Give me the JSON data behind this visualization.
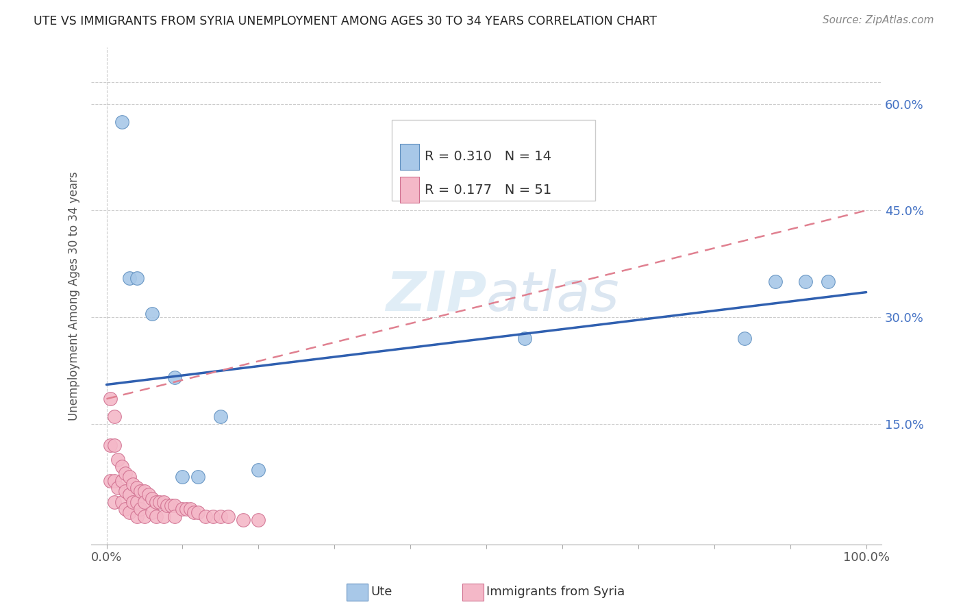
{
  "title": "UTE VS IMMIGRANTS FROM SYRIA UNEMPLOYMENT AMONG AGES 30 TO 34 YEARS CORRELATION CHART",
  "source": "Source: ZipAtlas.com",
  "ylabel": "Unemployment Among Ages 30 to 34 years",
  "xlim": [
    -0.02,
    1.02
  ],
  "ylim": [
    -0.02,
    0.68
  ],
  "yticks": [
    0.15,
    0.3,
    0.45,
    0.6
  ],
  "ytick_labels": [
    "15.0%",
    "30.0%",
    "45.0%",
    "60.0%"
  ],
  "xticks": [
    0.0,
    0.1,
    0.2,
    0.3,
    0.4,
    0.5,
    0.6,
    0.7,
    0.8,
    0.9,
    1.0
  ],
  "xtick_labels": [
    "0.0%",
    "",
    "",
    "",
    "",
    "",
    "",
    "",
    "",
    "",
    "100.0%"
  ],
  "ute_color": "#a8c8e8",
  "syria_color": "#f4b8c8",
  "ute_edge_color": "#6090c0",
  "syria_edge_color": "#d07090",
  "ute_line_color": "#3060b0",
  "syria_line_color": "#e08090",
  "legend_r_ute": "R = 0.310",
  "legend_n_ute": "N = 14",
  "legend_r_syria": "R = 0.177",
  "legend_n_syria": "N = 51",
  "ute_scatter_x": [
    0.02,
    0.03,
    0.04,
    0.06,
    0.09,
    0.1,
    0.12,
    0.15,
    0.2,
    0.55,
    0.84,
    0.88,
    0.92,
    0.95
  ],
  "ute_scatter_y": [
    0.575,
    0.355,
    0.355,
    0.305,
    0.215,
    0.075,
    0.075,
    0.16,
    0.085,
    0.27,
    0.27,
    0.35,
    0.35,
    0.35
  ],
  "syria_scatter_x": [
    0.005,
    0.005,
    0.005,
    0.01,
    0.01,
    0.01,
    0.01,
    0.015,
    0.015,
    0.02,
    0.02,
    0.02,
    0.025,
    0.025,
    0.025,
    0.03,
    0.03,
    0.03,
    0.035,
    0.035,
    0.04,
    0.04,
    0.04,
    0.045,
    0.045,
    0.05,
    0.05,
    0.05,
    0.055,
    0.06,
    0.06,
    0.065,
    0.065,
    0.07,
    0.075,
    0.075,
    0.08,
    0.085,
    0.09,
    0.09,
    0.1,
    0.105,
    0.11,
    0.115,
    0.12,
    0.13,
    0.14,
    0.15,
    0.16,
    0.18,
    0.2
  ],
  "syria_scatter_y": [
    0.185,
    0.12,
    0.07,
    0.16,
    0.12,
    0.07,
    0.04,
    0.1,
    0.06,
    0.09,
    0.07,
    0.04,
    0.08,
    0.055,
    0.03,
    0.075,
    0.05,
    0.025,
    0.065,
    0.04,
    0.06,
    0.04,
    0.02,
    0.055,
    0.03,
    0.055,
    0.04,
    0.02,
    0.05,
    0.045,
    0.025,
    0.04,
    0.02,
    0.04,
    0.04,
    0.02,
    0.035,
    0.035,
    0.035,
    0.02,
    0.03,
    0.03,
    0.03,
    0.025,
    0.025,
    0.02,
    0.02,
    0.02,
    0.02,
    0.015,
    0.015
  ],
  "ute_trend_x": [
    0.0,
    1.0
  ],
  "ute_trend_y": [
    0.205,
    0.335
  ],
  "syria_trend_x": [
    0.0,
    1.0
  ],
  "syria_trend_y": [
    0.185,
    0.45
  ],
  "watermark_zip": "ZIP",
  "watermark_atlas": "atlas",
  "background_color": "#ffffff",
  "grid_color": "#cccccc",
  "title_color": "#222222",
  "axis_label_color": "#555555",
  "right_tick_color": "#4472c4",
  "legend_text_color": "#333333",
  "legend_value_color": "#4472c4",
  "bottom_legend_items": [
    {
      "label": "Ute",
      "color": "#a8c8e8",
      "edge_color": "#6090c0"
    },
    {
      "label": "Immigrants from Syria",
      "color": "#f4b8c8",
      "edge_color": "#d07090"
    }
  ]
}
